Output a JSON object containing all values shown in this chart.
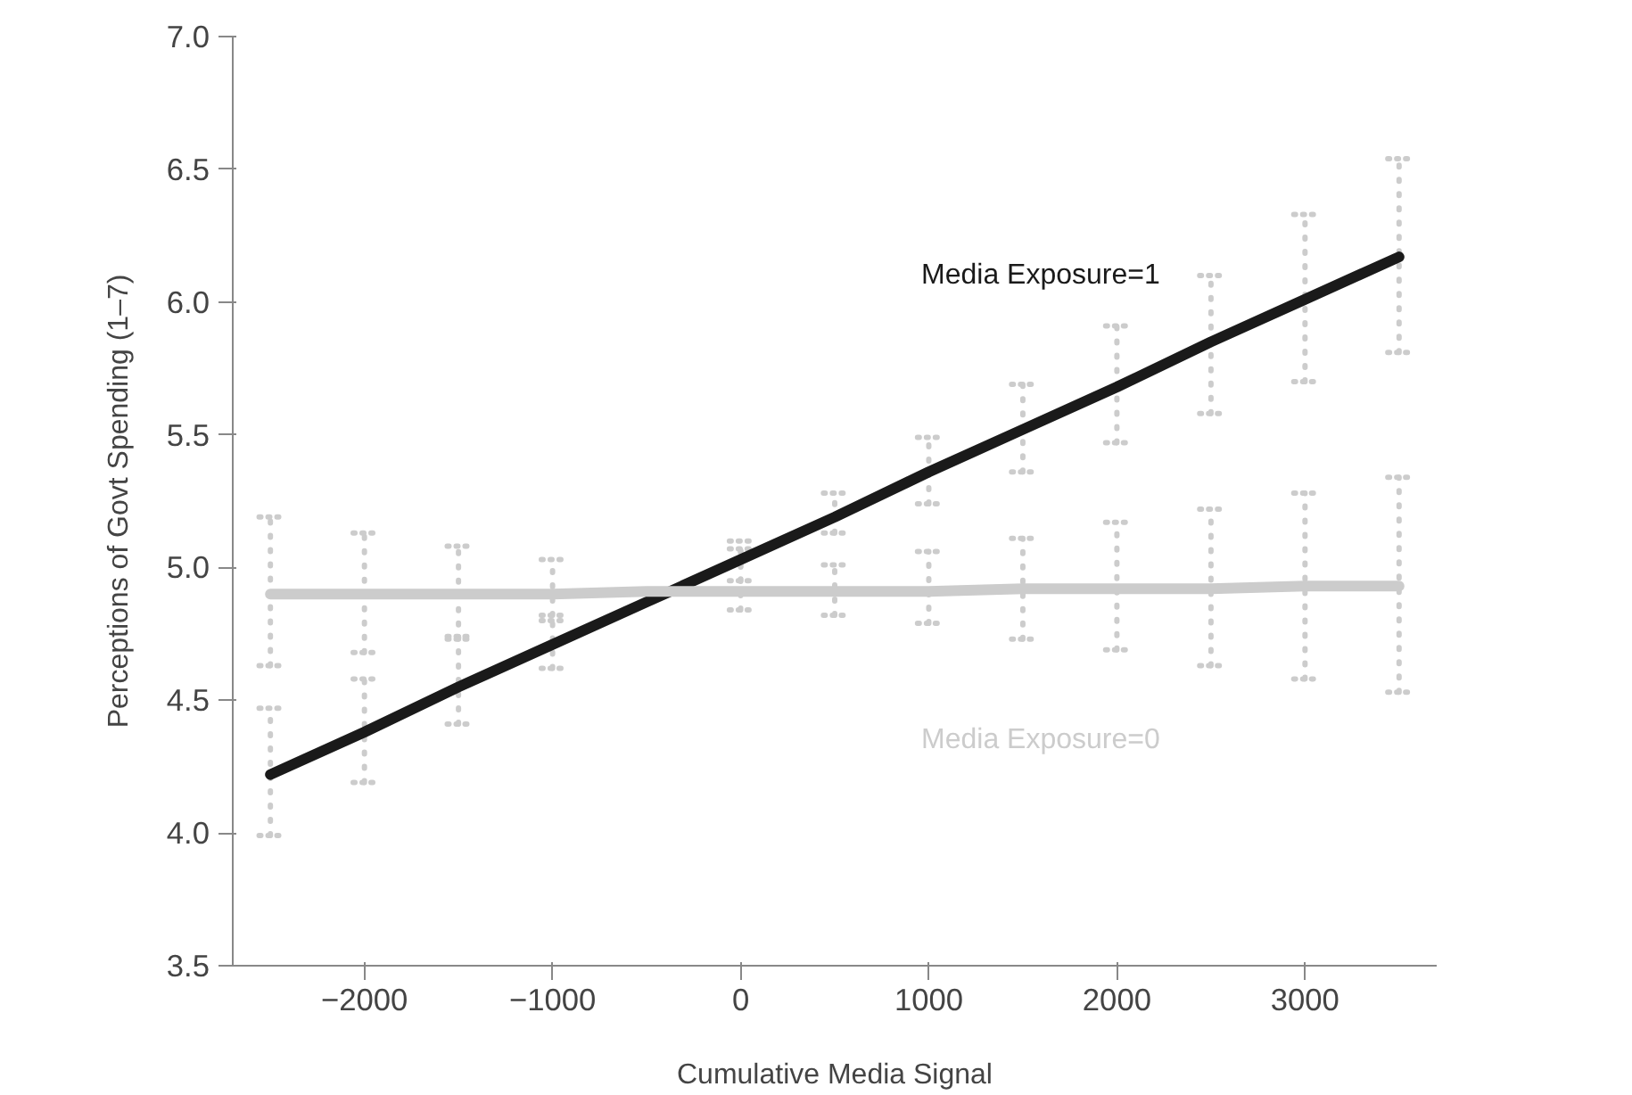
{
  "chart_data": {
    "type": "line",
    "xlabel": "Cumulative Media Signal",
    "ylabel": "Perceptions of Govt Spending (1–7)",
    "x": [
      -2500,
      -2000,
      -1500,
      -1000,
      -500,
      0,
      500,
      1000,
      1500,
      2000,
      2500,
      3000,
      3500
    ],
    "series": [
      {
        "name": "Media Exposure=1",
        "color": "#1a1a1a",
        "values": [
          4.22,
          4.38,
          4.55,
          4.71,
          4.87,
          5.03,
          5.19,
          5.36,
          5.52,
          5.68,
          5.85,
          6.01,
          6.17
        ],
        "errors": [
          [
            3.99,
            4.47
          ],
          [
            4.19,
            4.58
          ],
          [
            4.41,
            4.74
          ],
          [
            4.62,
            4.8
          ],
          null,
          [
            4.95,
            5.1
          ],
          [
            5.13,
            5.28
          ],
          [
            5.24,
            5.49
          ],
          [
            5.36,
            5.69
          ],
          [
            5.47,
            5.91
          ],
          [
            5.58,
            6.1
          ],
          [
            5.7,
            6.33
          ],
          [
            5.81,
            6.54
          ]
        ]
      },
      {
        "name": "Media Exposure=0",
        "color": "#cccccc",
        "values": [
          4.9,
          4.9,
          4.9,
          4.9,
          4.91,
          4.91,
          4.91,
          4.91,
          4.92,
          4.92,
          4.92,
          4.93,
          4.93
        ],
        "errors": [
          [
            4.63,
            5.19
          ],
          [
            4.68,
            5.13
          ],
          [
            4.73,
            5.08
          ],
          [
            4.82,
            5.03
          ],
          null,
          [
            4.84,
            5.07
          ],
          [
            4.82,
            5.01
          ],
          [
            4.79,
            5.06
          ],
          [
            4.73,
            5.11
          ],
          [
            4.69,
            5.17
          ],
          [
            4.63,
            5.22
          ],
          [
            4.58,
            5.28
          ],
          [
            4.53,
            5.34
          ]
        ]
      }
    ],
    "xlim": [
      -2700,
      3700
    ],
    "xticks": [
      {
        "value": -2000,
        "label": "−2000"
      },
      {
        "value": -1000,
        "label": "−1000"
      },
      0,
      1000,
      2000,
      3000
    ],
    "ylim": [
      3.5,
      7.0
    ],
    "yticks": [
      {
        "value": 3.5,
        "label": "3.5"
      },
      {
        "value": 4.0,
        "label": "4.0"
      },
      {
        "value": 4.5,
        "label": "4.5"
      },
      {
        "value": 5.0,
        "label": "5.0"
      },
      {
        "value": 5.5,
        "label": "5.5"
      },
      {
        "value": 6.0,
        "label": "6.0"
      },
      {
        "value": 6.5,
        "label": "6.5"
      },
      {
        "value": 7.0,
        "label": "7.0"
      }
    ],
    "grid": false
  }
}
